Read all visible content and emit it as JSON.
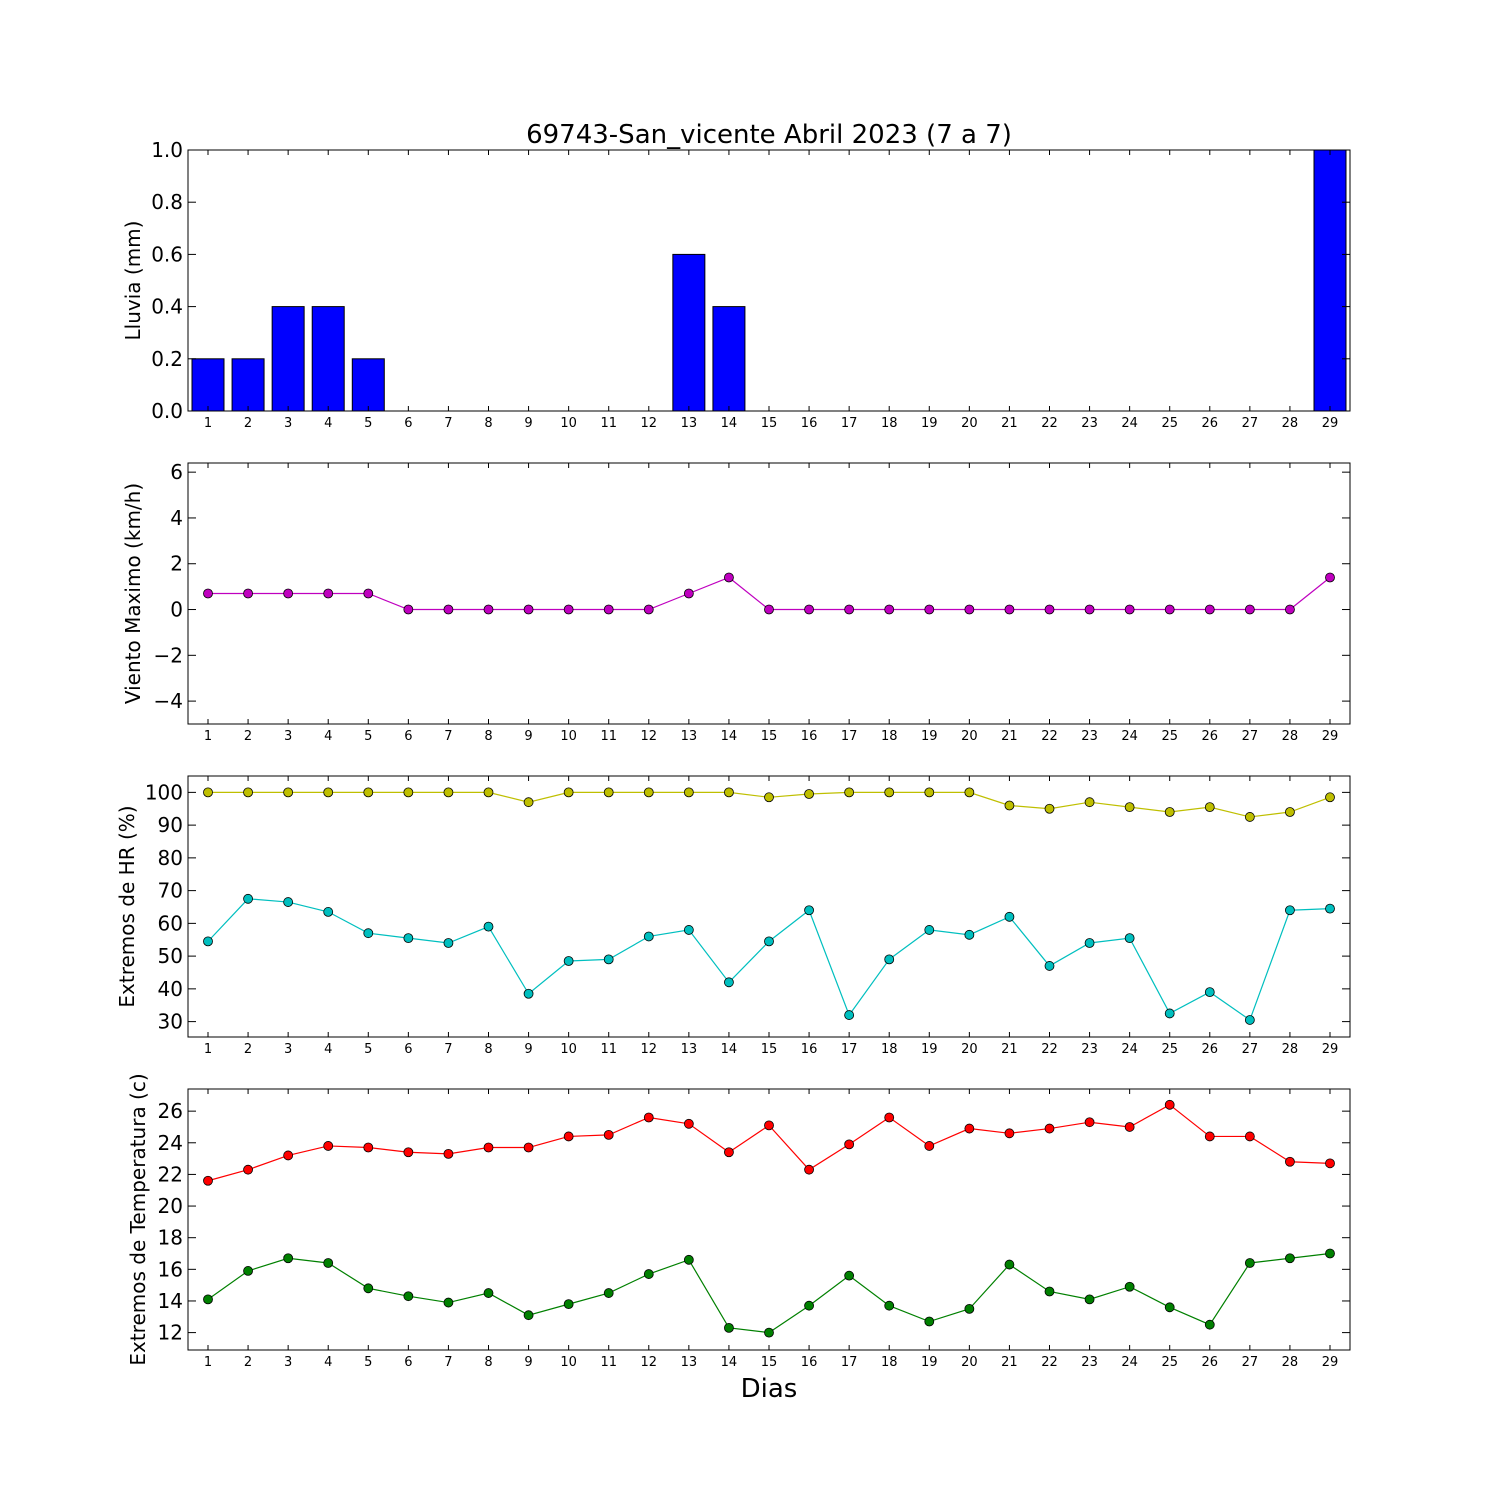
{
  "figure": {
    "title": "69743-San_vicente Abril 2023  (7 a 7)",
    "xlabel": "Dias"
  },
  "chart_data": [
    {
      "type": "bar",
      "ylabel": "Lluvia (mm)",
      "ylim": [
        0,
        1
      ],
      "yticks": [
        0.0,
        0.2,
        0.4,
        0.6,
        0.8,
        1.0
      ],
      "ytick_labels": [
        "0.0",
        "0.2",
        "0.4",
        "0.6",
        "0.8",
        "1.0"
      ],
      "categories": [
        1,
        2,
        3,
        4,
        5,
        6,
        7,
        8,
        9,
        10,
        11,
        12,
        13,
        14,
        15,
        16,
        17,
        18,
        19,
        20,
        21,
        22,
        23,
        24,
        25,
        26,
        27,
        28,
        29
      ],
      "series": [
        {
          "color": "#0000ff",
          "values": [
            0.2,
            0.2,
            0.4,
            0.4,
            0.2,
            0,
            0,
            0,
            0,
            0,
            0,
            0,
            0.6,
            0.4,
            0,
            0,
            0,
            0,
            0,
            0,
            0,
            0,
            0,
            0,
            0,
            0,
            0,
            0,
            1.0
          ]
        }
      ]
    },
    {
      "type": "line",
      "ylabel": "Viento Maximo (km/h)",
      "ylim": [
        -5,
        6.4
      ],
      "yticks": [
        -4,
        -2,
        0,
        2,
        4,
        6
      ],
      "ytick_labels": [
        "−4",
        "−2",
        "0",
        "2",
        "4",
        "6"
      ],
      "x": [
        1,
        2,
        3,
        4,
        5,
        6,
        7,
        8,
        9,
        10,
        11,
        12,
        13,
        14,
        15,
        16,
        17,
        18,
        19,
        20,
        21,
        22,
        23,
        24,
        25,
        26,
        27,
        28,
        29
      ],
      "series": [
        {
          "color": "#bf00bf",
          "values": [
            0.7,
            0.7,
            0.7,
            0.7,
            0.7,
            0,
            0,
            0,
            0,
            0,
            0,
            0,
            0.7,
            1.4,
            0,
            0,
            0,
            0,
            0,
            0,
            0,
            0,
            0,
            0,
            0,
            0,
            0,
            0,
            1.4
          ]
        }
      ]
    },
    {
      "type": "line",
      "ylabel": "Extremos de HR (%)",
      "ylim": [
        25.3,
        105
      ],
      "yticks": [
        30,
        40,
        50,
        60,
        70,
        80,
        90,
        100
      ],
      "ytick_labels": [
        "30",
        "40",
        "50",
        "60",
        "70",
        "80",
        "90",
        "100"
      ],
      "x": [
        1,
        2,
        3,
        4,
        5,
        6,
        7,
        8,
        9,
        10,
        11,
        12,
        13,
        14,
        15,
        16,
        17,
        18,
        19,
        20,
        21,
        22,
        23,
        24,
        25,
        26,
        27,
        28,
        29
      ],
      "series": [
        {
          "color": "#bfbf00",
          "values": [
            100,
            100,
            100,
            100,
            100,
            100,
            100,
            100,
            97,
            100,
            100,
            100,
            100,
            100,
            98.5,
            99.5,
            100,
            100,
            100,
            100,
            96,
            95,
            97,
            95.5,
            94,
            95.5,
            92.5,
            94,
            98.5
          ]
        },
        {
          "color": "#00bfbf",
          "values": [
            54.5,
            67.5,
            66.5,
            63.5,
            57,
            55.5,
            54,
            59,
            38.5,
            48.5,
            49,
            56,
            58,
            42,
            54.5,
            64,
            32,
            49,
            58,
            56.5,
            62,
            47,
            54,
            55.5,
            32.5,
            39,
            30.5,
            64,
            64.5
          ]
        }
      ]
    },
    {
      "type": "line",
      "ylabel": "Extremos de Temperatura (c)",
      "ylim": [
        10.9,
        27.4
      ],
      "yticks": [
        12,
        14,
        16,
        18,
        20,
        22,
        24,
        26
      ],
      "ytick_labels": [
        "12",
        "14",
        "16",
        "18",
        "20",
        "22",
        "24",
        "26"
      ],
      "x": [
        1,
        2,
        3,
        4,
        5,
        6,
        7,
        8,
        9,
        10,
        11,
        12,
        13,
        14,
        15,
        16,
        17,
        18,
        19,
        20,
        21,
        22,
        23,
        24,
        25,
        26,
        27,
        28,
        29
      ],
      "series": [
        {
          "color": "#ff0000",
          "values": [
            21.6,
            22.3,
            23.2,
            23.8,
            23.7,
            23.4,
            23.3,
            23.7,
            23.7,
            24.4,
            24.5,
            25.6,
            25.2,
            23.4,
            25.1,
            22.3,
            23.9,
            25.6,
            23.8,
            24.9,
            24.6,
            24.9,
            25.3,
            25.0,
            26.4,
            24.4,
            24.4,
            22.8,
            22.7
          ]
        },
        {
          "color": "#008000",
          "values": [
            14.1,
            15.9,
            16.7,
            16.4,
            14.8,
            14.3,
            13.9,
            14.5,
            13.1,
            13.8,
            14.5,
            15.7,
            16.6,
            12.3,
            12.0,
            13.7,
            15.6,
            13.7,
            12.7,
            13.5,
            16.3,
            14.6,
            14.1,
            14.9,
            13.6,
            12.5,
            16.4,
            16.7,
            17.0
          ]
        }
      ]
    }
  ]
}
